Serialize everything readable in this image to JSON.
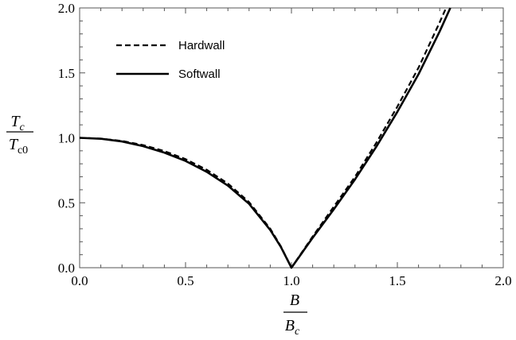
{
  "chart_data": {
    "type": "line",
    "title": "",
    "xlabel": {
      "numerator": "B",
      "denominator_base": "B",
      "denominator_sub": "c"
    },
    "ylabel": {
      "numerator_base": "T",
      "numerator_sub": "c",
      "denominator_base": "T",
      "denominator_sub": "c0"
    },
    "xlim": [
      0.0,
      2.0
    ],
    "ylim": [
      0.0,
      2.0
    ],
    "x_ticks": [
      "0.0",
      "0.5",
      "1.0",
      "1.5",
      "2.0"
    ],
    "y_ticks": [
      "0.0",
      "0.5",
      "1.0",
      "1.5",
      "2.0"
    ],
    "grid": false,
    "legend_position": "top-left",
    "series": [
      {
        "name": "Hardwall",
        "style": "dashed",
        "x": [
          0.0,
          0.1,
          0.2,
          0.3,
          0.4,
          0.5,
          0.6,
          0.7,
          0.8,
          0.9,
          0.95,
          1.0,
          1.05,
          1.1,
          1.2,
          1.3,
          1.4,
          1.5,
          1.6,
          1.7,
          1.73
        ],
        "y": [
          1.0,
          0.994,
          0.976,
          0.944,
          0.898,
          0.836,
          0.754,
          0.648,
          0.505,
          0.3,
          0.165,
          0.0,
          0.12,
          0.24,
          0.47,
          0.7,
          0.96,
          1.24,
          1.54,
          1.89,
          2.0
        ]
      },
      {
        "name": "Softwall",
        "style": "solid",
        "x": [
          0.0,
          0.1,
          0.2,
          0.3,
          0.4,
          0.5,
          0.6,
          0.7,
          0.8,
          0.9,
          0.95,
          1.0,
          1.05,
          1.1,
          1.2,
          1.3,
          1.4,
          1.5,
          1.6,
          1.7,
          1.75
        ],
        "y": [
          1.0,
          0.993,
          0.972,
          0.936,
          0.886,
          0.822,
          0.738,
          0.632,
          0.492,
          0.29,
          0.16,
          0.0,
          0.115,
          0.23,
          0.45,
          0.68,
          0.93,
          1.2,
          1.49,
          1.82,
          2.0
        ]
      }
    ]
  }
}
